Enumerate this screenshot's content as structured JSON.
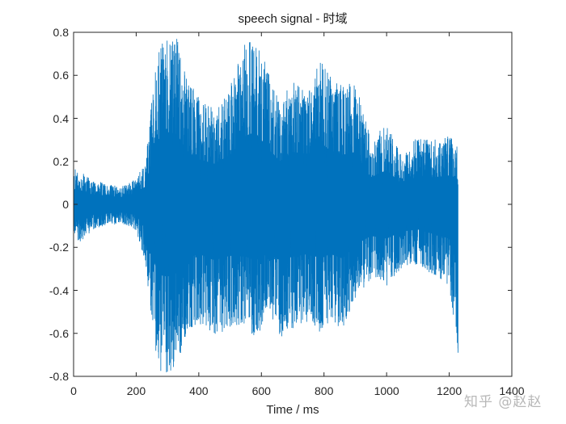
{
  "chart_data": {
    "type": "line",
    "title": "speech signal - 时域",
    "xlabel": "Time / ms",
    "ylabel": "",
    "xlim": [
      0,
      1400
    ],
    "ylim": [
      -0.8,
      0.8
    ],
    "grid": false,
    "legend": null,
    "line_color": "#0072BD",
    "xticks": [
      0,
      200,
      400,
      600,
      800,
      1000,
      1200,
      1400
    ],
    "xtick_labels": [
      "0",
      "200",
      "400",
      "600",
      "800",
      "1000",
      "1200",
      "1400"
    ],
    "yticks": [
      0.8,
      0.6,
      0.4,
      0.2,
      0,
      -0.2,
      -0.4,
      -0.6,
      -0.8
    ],
    "ytick_labels": [
      "0.8",
      "0.6",
      "0.4",
      "0.2",
      "0",
      "-0.2",
      "-0.4",
      "-0.6",
      "-0.8"
    ],
    "signal_duration_ms": 1228,
    "description": "Speech waveform: low-amplitude noise (~±0.15) from 0–230 ms, then speech with peaks reaching ±0.8 between ~230–1228 ms.",
    "envelope": {
      "x": [
        0,
        20,
        60,
        100,
        150,
        200,
        230,
        250,
        270,
        300,
        330,
        360,
        400,
        450,
        500,
        550,
        580,
        620,
        660,
        700,
        750,
        790,
        820,
        860,
        900,
        950,
        1000,
        1050,
        1100,
        1150,
        1200,
        1228
      ],
      "upper": [
        0.17,
        0.16,
        0.11,
        0.1,
        0.08,
        0.12,
        0.2,
        0.5,
        0.72,
        0.8,
        0.78,
        0.6,
        0.5,
        0.45,
        0.55,
        0.76,
        0.8,
        0.62,
        0.48,
        0.58,
        0.56,
        0.68,
        0.6,
        0.55,
        0.58,
        0.3,
        0.38,
        0.22,
        0.32,
        0.3,
        0.32,
        0.27
      ],
      "lower": [
        -0.14,
        -0.18,
        -0.12,
        -0.1,
        -0.09,
        -0.12,
        -0.28,
        -0.55,
        -0.78,
        -0.8,
        -0.76,
        -0.6,
        -0.55,
        -0.62,
        -0.57,
        -0.58,
        -0.62,
        -0.55,
        -0.62,
        -0.58,
        -0.55,
        -0.6,
        -0.55,
        -0.6,
        -0.45,
        -0.35,
        -0.38,
        -0.3,
        -0.28,
        -0.33,
        -0.38,
        -0.69
      ]
    }
  },
  "watermark": {
    "text": "知乎 @赵赵"
  }
}
